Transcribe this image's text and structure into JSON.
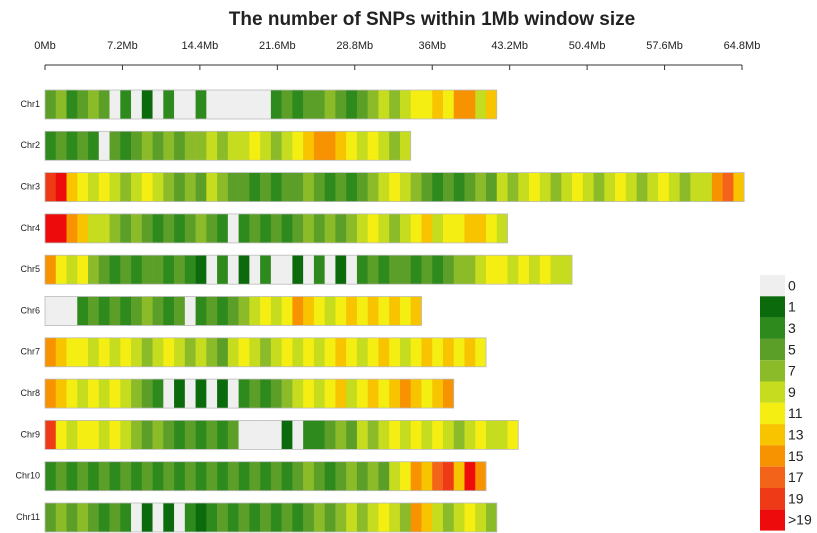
{
  "chart_data": {
    "type": "ideogram",
    "title": "The number of SNPs within 1Mb window size",
    "window_size": 1,
    "xlim": [
      0,
      64.8
    ],
    "xticks": [
      {
        "value": 0,
        "label": "0Mb"
      },
      {
        "value": 7.2,
        "label": "7.2Mb"
      },
      {
        "value": 14.4,
        "label": "14.4Mb"
      },
      {
        "value": 21.6,
        "label": "21.6Mb"
      },
      {
        "value": 28.8,
        "label": "28.8Mb"
      },
      {
        "value": 36,
        "label": "36Mb"
      },
      {
        "value": 43.2,
        "label": "43.2Mb"
      },
      {
        "value": 50.4,
        "label": "50.4Mb"
      },
      {
        "value": 57.6,
        "label": "57.6Mb"
      },
      {
        "value": 64.8,
        "label": "64.8Mb"
      }
    ],
    "series": [
      {
        "name": "Chr1",
        "values": [
          5,
          7,
          3,
          5,
          7,
          5,
          0,
          3,
          0,
          1,
          0,
          3,
          0,
          0,
          3,
          0,
          0,
          0,
          0,
          0,
          0,
          3,
          5,
          3,
          5,
          5,
          7,
          5,
          3,
          5,
          7,
          9,
          7,
          9,
          11,
          11,
          13,
          11,
          15,
          15,
          9,
          13
        ]
      },
      {
        "name": "Chr2",
        "values": [
          3,
          5,
          3,
          5,
          3,
          0,
          5,
          3,
          5,
          7,
          5,
          7,
          5,
          7,
          7,
          9,
          7,
          9,
          9,
          11,
          9,
          7,
          9,
          11,
          13,
          15,
          15,
          13,
          11,
          9,
          11,
          9,
          7,
          9
        ]
      },
      {
        "name": "Chr3",
        "values": [
          19,
          20,
          13,
          11,
          9,
          11,
          9,
          7,
          9,
          11,
          9,
          7,
          5,
          7,
          5,
          9,
          7,
          5,
          5,
          3,
          5,
          3,
          5,
          5,
          7,
          5,
          3,
          5,
          3,
          5,
          7,
          9,
          11,
          9,
          7,
          5,
          3,
          5,
          3,
          5,
          7,
          5,
          9,
          7,
          9,
          11,
          9,
          7,
          9,
          11,
          9,
          7,
          9,
          11,
          9,
          7,
          9,
          11,
          9,
          7,
          9,
          9,
          15,
          17,
          13
        ]
      },
      {
        "name": "Chr4",
        "values": [
          20,
          20,
          15,
          13,
          9,
          9,
          7,
          5,
          7,
          5,
          3,
          5,
          3,
          5,
          7,
          5,
          3,
          0,
          3,
          5,
          3,
          5,
          3,
          5,
          7,
          5,
          7,
          5,
          7,
          9,
          11,
          9,
          7,
          9,
          11,
          13,
          9,
          11,
          11,
          13,
          13,
          11,
          9
        ]
      },
      {
        "name": "Chr5",
        "values": [
          15,
          11,
          9,
          11,
          7,
          5,
          3,
          5,
          3,
          5,
          5,
          3,
          5,
          3,
          1,
          0,
          3,
          0,
          1,
          0,
          3,
          0,
          0,
          1,
          0,
          3,
          0,
          1,
          0,
          3,
          5,
          3,
          5,
          5,
          3,
          5,
          3,
          5,
          7,
          7,
          9,
          11,
          11,
          9,
          11,
          9,
          11,
          9,
          9
        ]
      },
      {
        "name": "Chr6",
        "values": [
          0,
          0,
          0,
          3,
          5,
          3,
          5,
          3,
          5,
          7,
          5,
          3,
          5,
          0,
          3,
          5,
          3,
          5,
          7,
          9,
          11,
          9,
          11,
          15,
          13,
          11,
          9,
          11,
          13,
          11,
          13,
          11,
          13,
          11,
          13
        ]
      },
      {
        "name": "Chr7",
        "values": [
          15,
          13,
          11,
          11,
          9,
          11,
          9,
          11,
          9,
          7,
          9,
          11,
          9,
          7,
          9,
          7,
          5,
          9,
          11,
          9,
          7,
          9,
          11,
          9,
          11,
          9,
          11,
          13,
          11,
          9,
          11,
          13,
          11,
          9,
          11,
          13,
          11,
          13,
          11,
          13,
          11
        ]
      },
      {
        "name": "Chr8",
        "values": [
          15,
          13,
          11,
          9,
          11,
          9,
          11,
          9,
          7,
          5,
          3,
          0,
          1,
          0,
          1,
          0,
          1,
          0,
          3,
          5,
          3,
          5,
          7,
          9,
          11,
          9,
          11,
          13,
          9,
          11,
          13,
          11,
          13,
          15,
          13,
          11,
          13,
          15
        ]
      },
      {
        "name": "Chr9",
        "values": [
          19,
          11,
          9,
          11,
          11,
          9,
          11,
          9,
          7,
          5,
          7,
          5,
          3,
          5,
          3,
          5,
          3,
          5,
          0,
          0,
          0,
          0,
          1,
          0,
          3,
          3,
          5,
          7,
          5,
          9,
          7,
          9,
          11,
          9,
          11,
          9,
          11,
          9,
          7,
          9,
          11,
          9,
          9,
          11
        ]
      },
      {
        "name": "Chr10",
        "values": [
          3,
          5,
          3,
          5,
          3,
          5,
          3,
          5,
          3,
          5,
          3,
          5,
          3,
          5,
          3,
          5,
          3,
          5,
          3,
          5,
          3,
          5,
          3,
          5,
          7,
          5,
          3,
          5,
          7,
          5,
          7,
          5,
          9,
          11,
          15,
          13,
          17,
          19,
          13,
          20,
          15
        ]
      },
      {
        "name": "Chr11",
        "values": [
          5,
          7,
          5,
          7,
          5,
          3,
          5,
          3,
          0,
          1,
          0,
          1,
          0,
          3,
          1,
          3,
          5,
          3,
          5,
          3,
          5,
          3,
          5,
          3,
          5,
          7,
          5,
          7,
          9,
          7,
          9,
          11,
          9,
          7,
          15,
          13,
          9,
          7,
          9,
          11,
          9,
          7
        ]
      }
    ],
    "colorbar": {
      "ticks": [
        0,
        1,
        3,
        5,
        7,
        9,
        11,
        13,
        15,
        17,
        19,
        {
          "value": 20,
          "label": ">19"
        }
      ],
      "colors": [
        "#efefef",
        "#0b6a0b",
        "#2f8a1e",
        "#5c9f28",
        "#8cbb2a",
        "#c6dc1e",
        "#f4ee12",
        "#f8c400",
        "#f79200",
        "#f3631a",
        "#ef3a18",
        "#ee0b0b"
      ]
    }
  }
}
